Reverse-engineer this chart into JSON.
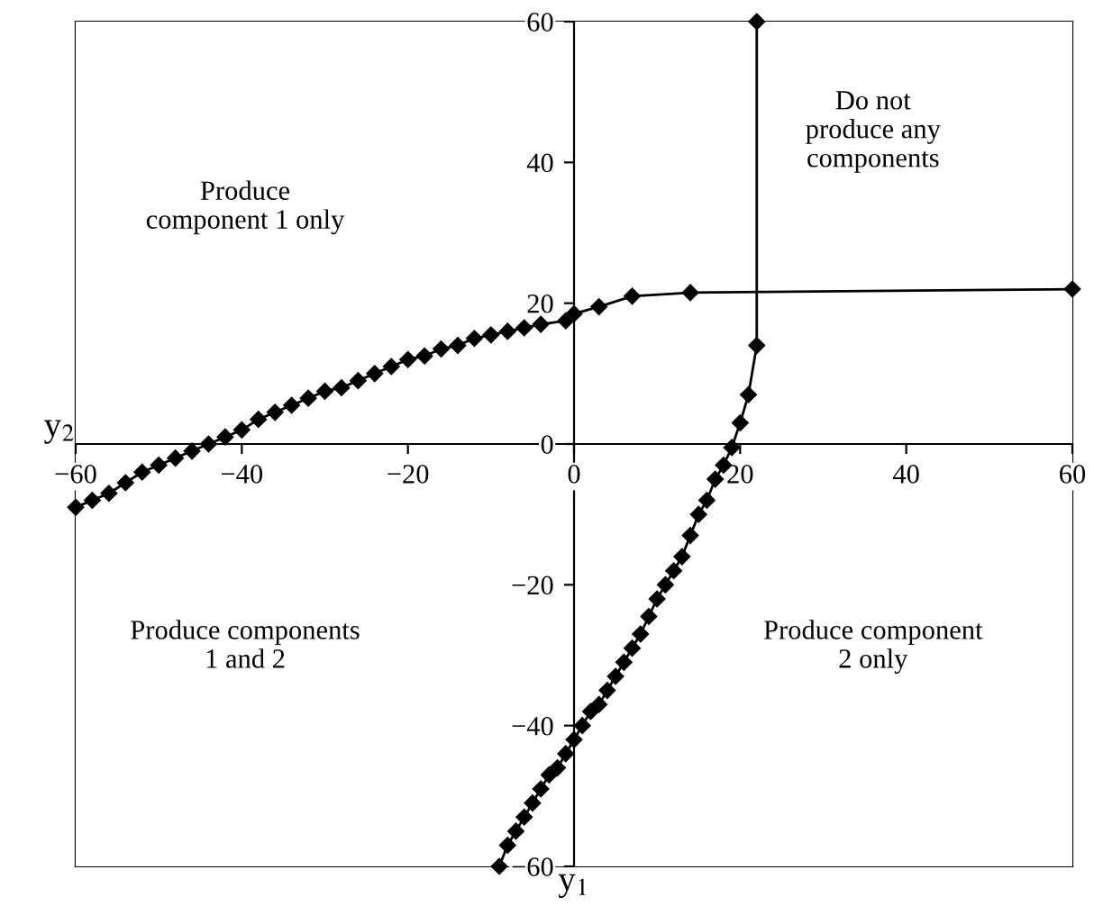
{
  "chart_data": {
    "type": "line",
    "xlabel": "y$_{1}$",
    "ylabel": "y$_{2}$",
    "xlim": [
      -60,
      60
    ],
    "ylim": [
      -60,
      60
    ],
    "xticks": [
      -60,
      -40,
      -20,
      0,
      20,
      40,
      60
    ],
    "yticks": [
      -60,
      -40,
      -20,
      0,
      20,
      40,
      60
    ],
    "grid": false,
    "legend": false,
    "marker": "diamond",
    "line_style": "solid",
    "series": [
      {
        "color": "#000000",
        "x": [
          -60,
          -58,
          -56,
          -54,
          -52,
          -50,
          -48,
          -46,
          -44,
          -42,
          -40,
          -38,
          -36,
          -34,
          -32,
          -30,
          -28,
          -26,
          -24,
          -22,
          -20,
          -18,
          -16,
          -14,
          -12,
          -10,
          -8,
          -6,
          -4,
          -1,
          0,
          3,
          7,
          14,
          60
        ],
        "values": [
          -9,
          -8,
          -7,
          -5.5,
          -4,
          -3,
          -2,
          -1,
          0,
          1,
          2,
          3.5,
          4.5,
          5.5,
          6.5,
          7.5,
          8,
          9,
          10,
          11,
          12,
          12.5,
          13.5,
          14,
          15,
          15.5,
          16,
          16.5,
          17,
          17.5,
          18.5,
          19.5,
          21,
          21.5,
          22
        ]
      },
      {
        "color": "#000000",
        "x": [
          22,
          22,
          21,
          20,
          19,
          18,
          17,
          16,
          15,
          14,
          13,
          12,
          11,
          10,
          9,
          8,
          7,
          6,
          5,
          4,
          3,
          2,
          1,
          0,
          -1,
          -2,
          -3,
          -4,
          -5,
          -6,
          -7,
          -8,
          -9
        ],
        "values": [
          60,
          14,
          7,
          3,
          -0.5,
          -3,
          -5,
          -8,
          -10,
          -13,
          -16,
          -18,
          -20,
          -22,
          -24.5,
          -27,
          -29,
          -31,
          -33,
          -35,
          -37,
          -38,
          -40,
          -42,
          -44,
          -46,
          -47,
          -49,
          -51,
          -53,
          -55,
          -57,
          -60
        ]
      }
    ],
    "annotations": [
      "Produce\ncomponent 1 only",
      "Do not\nproduce any\ncomponents",
      "Produce components\n1 and 2",
      "Produce component\n2 only"
    ]
  }
}
